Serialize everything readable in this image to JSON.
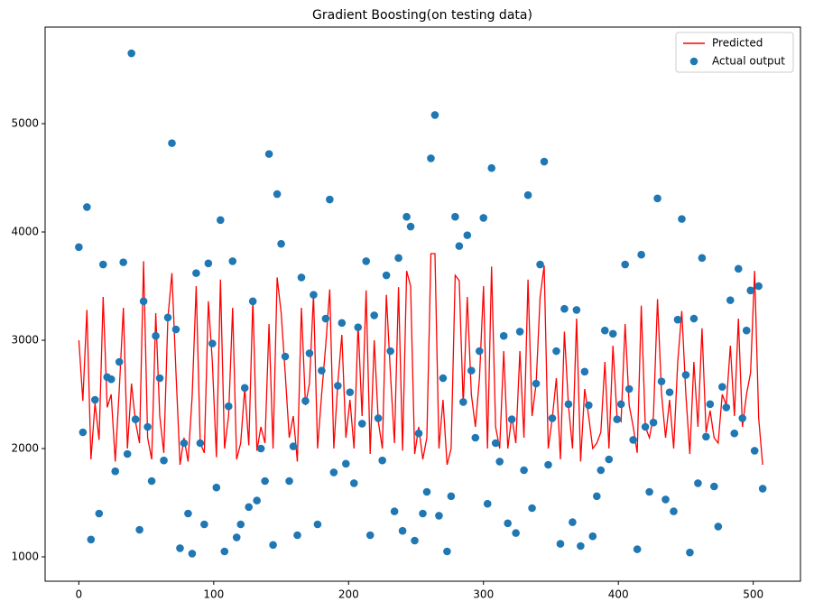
{
  "chart_data": {
    "type": "scatter-line",
    "title": "Gradient Boosting(on testing data)",
    "xlim": [
      -25,
      535
    ],
    "ylim": [
      775,
      5892
    ],
    "xticks": [
      0,
      100,
      200,
      300,
      400,
      500
    ],
    "yticks": [
      1000,
      2000,
      3000,
      4000,
      5000
    ],
    "legend": "upper right",
    "x": [
      0,
      3,
      6,
      9,
      12,
      15,
      18,
      21,
      24,
      27,
      30,
      33,
      36,
      39,
      42,
      45,
      48,
      51,
      54,
      57,
      60,
      63,
      66,
      69,
      72,
      75,
      78,
      81,
      84,
      87,
      90,
      93,
      96,
      99,
      102,
      105,
      108,
      111,
      114,
      117,
      120,
      123,
      126,
      129,
      132,
      135,
      138,
      141,
      144,
      147,
      150,
      153,
      156,
      159,
      162,
      165,
      168,
      171,
      174,
      177,
      180,
      183,
      186,
      189,
      192,
      195,
      198,
      201,
      204,
      207,
      210,
      213,
      216,
      219,
      222,
      225,
      228,
      231,
      234,
      237,
      240,
      243,
      246,
      249,
      252,
      255,
      258,
      261,
      264,
      267,
      270,
      273,
      276,
      279,
      282,
      285,
      288,
      291,
      294,
      297,
      300,
      303,
      306,
      309,
      312,
      315,
      318,
      321,
      324,
      327,
      330,
      333,
      336,
      339,
      342,
      345,
      348,
      351,
      354,
      357,
      360,
      363,
      366,
      369,
      372,
      375,
      378,
      381,
      384,
      387,
      390,
      393,
      396,
      399,
      402,
      405,
      408,
      411,
      414,
      417,
      420,
      423,
      426,
      429,
      432,
      435,
      438,
      441,
      444,
      447,
      450,
      453,
      456,
      459,
      462,
      465,
      468,
      471,
      474,
      477,
      480,
      483,
      486,
      489,
      492,
      495,
      498,
      501,
      504,
      507
    ],
    "series": [
      {
        "name": "Predicted",
        "kind": "line",
        "color": "#ff0000",
        "values": [
          3000,
          2440,
          3280,
          1900,
          2420,
          2080,
          3400,
          2380,
          2500,
          1880,
          2550,
          3300,
          2000,
          2600,
          2250,
          2050,
          3730,
          2100,
          1900,
          3250,
          2300,
          1960,
          3200,
          3620,
          2700,
          1850,
          2100,
          1880,
          2480,
          3500,
          2050,
          1960,
          3360,
          2800,
          1920,
          3560,
          2000,
          2300,
          3300,
          1900,
          2050,
          2560,
          2030,
          3380,
          1980,
          2200,
          2050,
          3150,
          2000,
          3580,
          3250,
          2700,
          2100,
          2300,
          1880,
          3300,
          2400,
          2600,
          3420,
          2000,
          2500,
          2950,
          3470,
          2000,
          2600,
          3050,
          2100,
          2450,
          2000,
          3150,
          2300,
          3460,
          1950,
          3000,
          2250,
          2000,
          3420,
          2700,
          2050,
          3490,
          1980,
          3640,
          3500,
          1950,
          2200,
          1900,
          2100,
          3800,
          3800,
          2000,
          2450,
          1850,
          2000,
          3600,
          3550,
          2400,
          3400,
          2500,
          2200,
          2650,
          3500,
          2000,
          3680,
          2200,
          2000,
          2900,
          2000,
          2300,
          2050,
          2900,
          2100,
          3560,
          2300,
          2600,
          3400,
          3690,
          2000,
          2280,
          2650,
          1900,
          3080,
          2400,
          2000,
          3200,
          1880,
          2550,
          2300,
          2000,
          2050,
          2150,
          2800,
          2000,
          2950,
          2300,
          2250,
          3150,
          2400,
          2200,
          1960,
          3320,
          2200,
          2100,
          2300,
          3380,
          2500,
          2100,
          2450,
          2000,
          2800,
          3270,
          2500,
          1950,
          2800,
          2200,
          3110,
          2150,
          2350,
          2100,
          2050,
          2500,
          2400,
          2950,
          2300,
          3200,
          2200,
          2500,
          2700,
          3640,
          2280,
          1850
        ]
      },
      {
        "name": "Actual output",
        "kind": "scatter",
        "color": "#1f77b4",
        "values": [
          3860,
          2150,
          4230,
          1160,
          2450,
          1400,
          3700,
          2660,
          2640,
          1790,
          2800,
          3720,
          1950,
          5650,
          2270,
          1250,
          3360,
          2200,
          1700,
          3040,
          2650,
          1890,
          3210,
          4820,
          3100,
          1080,
          2050,
          1400,
          1030,
          3620,
          2050,
          1300,
          3710,
          2970,
          1640,
          4110,
          1050,
          2390,
          3730,
          1180,
          1300,
          2560,
          1460,
          3360,
          1520,
          2000,
          1700,
          4720,
          1110,
          4350,
          3890,
          2850,
          1700,
          2020,
          1200,
          3580,
          2440,
          2880,
          3420,
          1300,
          2720,
          3200,
          4300,
          1780,
          2580,
          3160,
          1860,
          2520,
          1680,
          3120,
          2230,
          3730,
          1200,
          3230,
          2280,
          1890,
          3600,
          2900,
          1420,
          3760,
          1240,
          4140,
          4050,
          1150,
          2140,
          1400,
          1600,
          4680,
          5080,
          1380,
          2650,
          1050,
          1560,
          4140,
          3870,
          2430,
          3970,
          2720,
          2100,
          2900,
          4130,
          1490,
          4590,
          2050,
          1880,
          3040,
          1310,
          2270,
          1220,
          3080,
          1800,
          4340,
          1450,
          2600,
          3700,
          4650,
          1850,
          2280,
          2900,
          1120,
          3290,
          2410,
          1320,
          3280,
          1100,
          2710,
          2400,
          1190,
          1560,
          1800,
          3090,
          1900,
          3060,
          2270,
          2410,
          3700,
          2550,
          2080,
          1070,
          3790,
          2200,
          1600,
          2240,
          4310,
          2620,
          1530,
          2520,
          1420,
          3190,
          4120,
          2680,
          1040,
          3200,
          1680,
          3760,
          2110,
          2410,
          1650,
          1280,
          2570,
          2380,
          3370,
          2140,
          3660,
          2280,
          3090,
          3460,
          1980,
          3500,
          1630
        ]
      }
    ]
  }
}
